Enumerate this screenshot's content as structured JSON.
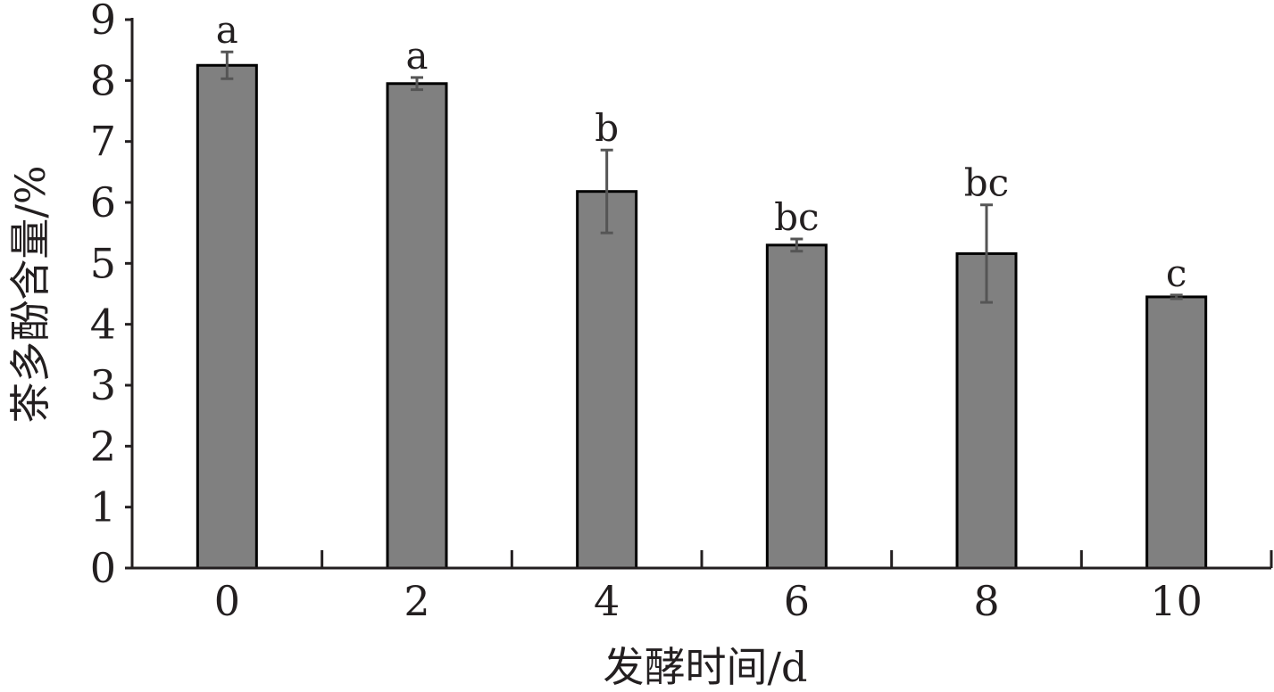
{
  "chart_data": {
    "type": "bar",
    "xlabel": "发酵时间/d",
    "ylabel": "茶多酚含量/%",
    "categories": [
      "0",
      "2",
      "4",
      "6",
      "8",
      "10"
    ],
    "values": [
      8.25,
      7.95,
      6.18,
      5.3,
      5.16,
      4.45
    ],
    "errors": [
      0.22,
      0.1,
      0.68,
      0.1,
      0.8,
      0.03
    ],
    "significance": [
      "a",
      "a",
      "b",
      "bc",
      "bc",
      "c"
    ],
    "yticks": [
      "0",
      "1",
      "2",
      "3",
      "4",
      "5",
      "6",
      "7",
      "8",
      "9"
    ],
    "ylim": [
      0,
      9
    ],
    "grid": false,
    "colors": {
      "bar": "#808080",
      "bar_outline": "#000000",
      "error_bar": "#555555",
      "axis": "#231f20"
    }
  }
}
